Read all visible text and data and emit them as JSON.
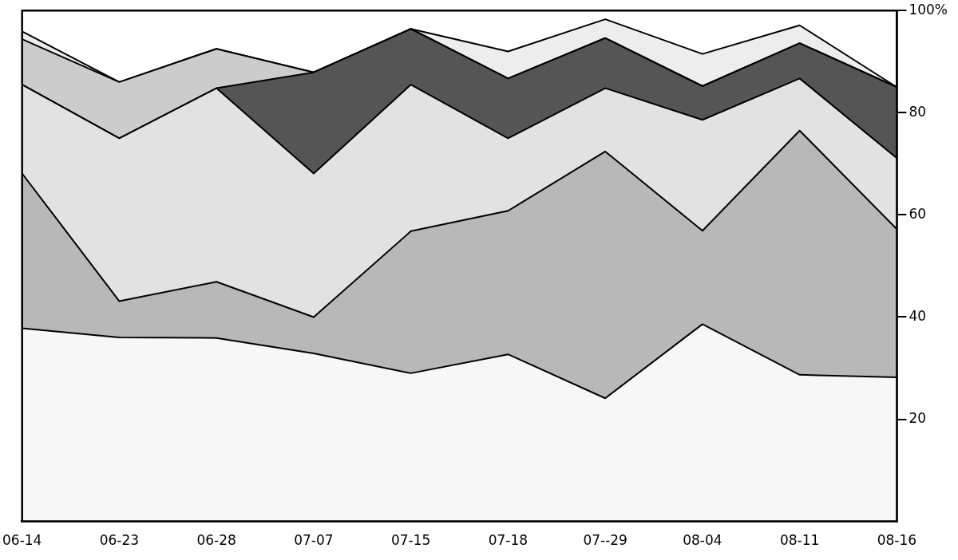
{
  "chart_data": {
    "type": "area",
    "stacked": true,
    "categories": [
      "06-14",
      "06-23",
      "06-28",
      "07-07",
      "07-15",
      "07-18",
      "07--29",
      "08-04",
      "08-11",
      "08-16"
    ],
    "series": [
      {
        "color": "#f7f7f7",
        "values": [
          37.8,
          36.0,
          35.9,
          32.9,
          29.0,
          32.7,
          24.1,
          38.6,
          28.7,
          28.2
        ]
      },
      {
        "color": "#b8b8b8",
        "values": [
          30.3,
          7.1,
          11.0,
          7.1,
          27.8,
          28.1,
          48.3,
          18.3,
          47.8,
          29.0
        ]
      },
      {
        "color": "#e2e2e2",
        "values": [
          17.4,
          31.9,
          37.9,
          28.1,
          28.7,
          14.2,
          12.4,
          21.7,
          10.2,
          13.9
        ]
      },
      {
        "color": "#555555",
        "values": [
          0,
          0,
          0,
          19.8,
          10.9,
          11.7,
          9.8,
          6.6,
          6.9,
          13.9
        ]
      },
      {
        "color": "#cccccc",
        "values": [
          8.9,
          11.0,
          7.7,
          0,
          0,
          0,
          0,
          0,
          0,
          0
        ]
      },
      {
        "color": "#ededed",
        "values": [
          1.5,
          0,
          0,
          0,
          0,
          5.3,
          3.7,
          6.3,
          3.5,
          0
        ]
      }
    ],
    "ylim": [
      0,
      100
    ],
    "yticks": [
      20,
      40,
      60,
      80,
      {
        "value": 100,
        "label": "100%"
      }
    ],
    "grid": false,
    "legend": false,
    "marker": "none",
    "line_style": "solid"
  }
}
